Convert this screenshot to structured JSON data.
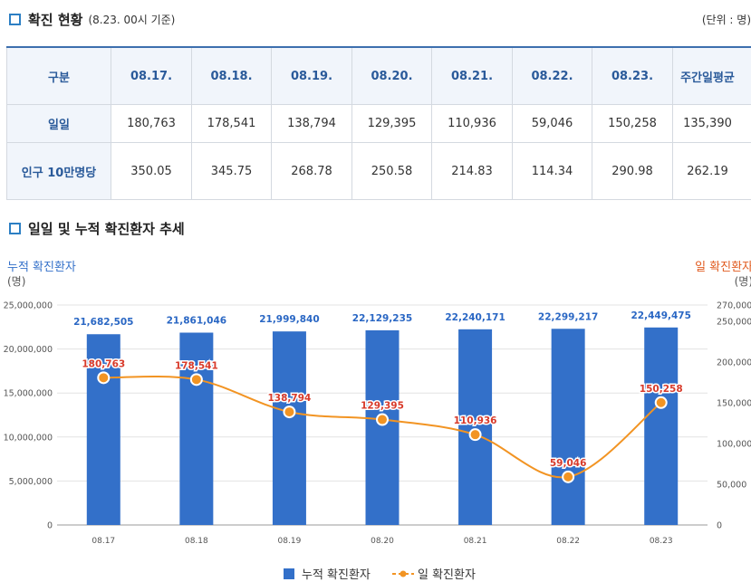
{
  "section1": {
    "title": "확진 현황",
    "subtitle": "(8.23. 00시 기준)",
    "unit": "(단위 : 명)"
  },
  "table": {
    "headers": [
      "구분",
      "08.17.",
      "08.18.",
      "08.19.",
      "08.20.",
      "08.21.",
      "08.22.",
      "08.23.",
      "주간일평균"
    ],
    "rows": [
      {
        "label": "일일",
        "values": [
          "180,763",
          "178,541",
          "138,794",
          "129,395",
          "110,936",
          "59,046",
          "150,258",
          "135,390"
        ]
      },
      {
        "label": "인구 10만명당",
        "values": [
          "350.05",
          "345.75",
          "268.78",
          "250.58",
          "214.83",
          "114.34",
          "290.98",
          "262.19"
        ]
      }
    ]
  },
  "section2": {
    "title": "일일 및 누적 확진환자 추세"
  },
  "chart_data": {
    "type": "bar",
    "categories": [
      "08.17",
      "08.18",
      "08.19",
      "08.20",
      "08.21",
      "08.22",
      "08.23"
    ],
    "series": [
      {
        "name": "누적 확진환자",
        "kind": "bar",
        "axis": "left",
        "color": "#3370c9",
        "values": [
          21682505,
          21861046,
          21999840,
          22129235,
          22240171,
          22299217,
          22449475
        ],
        "labels": [
          "21,682,505",
          "21,861,046",
          "21,999,840",
          "22,129,235",
          "22,240,171",
          "22,299,217",
          "22,449,475"
        ]
      },
      {
        "name": "일 확진환자",
        "kind": "line",
        "axis": "right",
        "color": "#f29423",
        "values": [
          180763,
          178541,
          138794,
          129395,
          110936,
          59046,
          150258
        ],
        "labels": [
          "180,763",
          "178,541",
          "138,794",
          "129,395",
          "110,936",
          "59,046",
          "150,258"
        ]
      }
    ],
    "left_axis": {
      "title": "누적 확진환자",
      "unit": "(명)",
      "range": [
        0,
        25000000
      ],
      "ticks": [
        0,
        5000000,
        10000000,
        15000000,
        20000000,
        25000000
      ],
      "tick_labels": [
        "0",
        "5,000,000",
        "10,000,000",
        "15,000,000",
        "20,000,000",
        "25,000,000"
      ]
    },
    "right_axis": {
      "title": "일 확진환자",
      "unit": "(명)",
      "range": [
        0,
        270000
      ],
      "ticks": [
        0,
        50000,
        100000,
        150000,
        200000,
        250000,
        270000
      ],
      "tick_labels": [
        "0",
        "50,000",
        "100,000",
        "150,000",
        "200,000",
        "250,000",
        "270,000"
      ]
    },
    "legend": {
      "position": "bottom",
      "items": [
        "누적 확진환자",
        "일 확진환자"
      ]
    },
    "colors": {
      "bar": "#3370c9",
      "line": "#f29423",
      "bar_label": "#2a67c4",
      "line_label": "#d83a2a",
      "left_title": "#3370c9",
      "right_title": "#e05a1e"
    }
  }
}
